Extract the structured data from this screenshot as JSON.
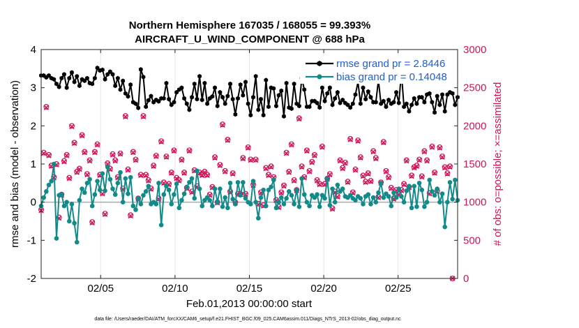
{
  "chart_data": {
    "type": "line",
    "title_line1": "Northern Hemisphere 167035 / 168055 = 99.393%",
    "title_line2": "AIRCRAFT_U_WIND_COMPONENT @ 688 hPa",
    "xlabel": "Feb.01,2013 00:00:00 start",
    "ylabel_left": "rmse and bias (model - observation)",
    "ylabel_right": "# of obs: o=possible; ×=assimilated",
    "footnote": "data file: /Users/raeder/DAI/ATM_forcXX/CAM6_setup/f.e21.FHIST_BGC.f09_025.CAM6assim.011/Diags_NTrS_2013-02/obs_diag_output.nc",
    "x_tick_labels": [
      "02/05",
      "02/10",
      "02/15",
      "02/20",
      "02/25"
    ],
    "x_tick_days": [
      5,
      10,
      15,
      20,
      25
    ],
    "xlim_days": [
      1,
      29
    ],
    "ylim_left": [
      -2,
      4
    ],
    "y_left_ticks": [
      "-2",
      "-1",
      "0",
      "1",
      "2",
      "3",
      "4"
    ],
    "ylim_right": [
      0,
      3000
    ],
    "y_right_ticks": [
      "0",
      "500",
      "1000",
      "1500",
      "2000",
      "2500",
      "3000"
    ],
    "colors": {
      "rmse": "#000000",
      "bias": "#138a8a",
      "obs": "#d0145a",
      "zero_line": "#b0b0b0",
      "legend_text": "#1f5fcf"
    },
    "legend": [
      {
        "name": "rmse",
        "label": "rmse grand pr = 2.8446"
      },
      {
        "name": "bias",
        "label": "bias grand pr = 0.14048"
      }
    ],
    "series": [
      {
        "name": "rmse",
        "values": [
          3.32,
          3.32,
          3.27,
          3.32,
          3.25,
          3.22,
          3.1,
          3.02,
          3.25,
          3.35,
          3.0,
          3.25,
          3.4,
          3.15,
          3.3,
          3.05,
          3.22,
          3.18,
          3.25,
          3.12,
          3.1,
          3.25,
          3.52,
          3.45,
          3.47,
          3.22,
          3.35,
          3.42,
          3.35,
          3.05,
          3.25,
          2.95,
          3.18,
          2.85,
          2.77,
          3.08,
          2.62,
          2.58,
          2.47,
          3.48,
          3.28,
          2.5,
          2.67,
          2.78,
          2.62,
          2.68,
          2.64,
          2.72,
          2.72,
          3.12,
          2.7,
          2.55,
          2.62,
          2.88,
          2.95,
          3.0,
          2.72,
          2.58,
          2.42,
          2.75,
          3.1,
          2.7,
          3.3,
          2.68,
          3.12,
          2.58,
          2.72,
          2.77,
          3.0,
          2.52,
          2.88,
          2.75,
          2.58,
          2.78,
          3.1,
          2.7,
          2.3,
          2.72,
          3.08,
          2.8,
          3.15,
          2.58,
          2.28,
          2.75,
          3.3,
          2.42,
          2.7,
          2.28,
          3.2,
          2.5,
          3.0,
          2.98,
          2.52,
          2.8,
          2.92,
          2.25,
          3.12,
          2.48,
          2.45,
          3.1,
          2.58,
          2.52,
          3.25,
          2.95,
          2.5,
          2.5,
          2.65,
          2.65,
          2.6,
          2.48,
          3.0,
          2.65,
          2.85,
          3.0,
          2.55,
          2.72,
          2.88,
          2.6,
          2.68,
          2.6,
          2.55,
          2.48,
          2.58,
          2.82,
          3.15,
          2.58,
          3.0,
          2.7,
          2.9,
          2.75,
          2.62,
          2.62,
          3.2,
          2.58,
          2.65,
          2.5,
          2.68,
          2.58,
          2.62,
          2.88,
          2.6,
          3.4,
          2.5,
          2.58,
          2.38,
          2.55,
          2.72,
          2.58,
          2.75,
          2.75,
          2.62,
          2.82,
          2.85,
          2.62,
          2.35,
          2.78,
          2.55,
          2.82,
          2.38,
          2.82,
          2.88,
          2.85,
          2.55,
          2.75
        ]
      },
      {
        "name": "bias",
        "values": [
          -0.1,
          0.12,
          0.28,
          0.45,
          0.55,
          1.0,
          -0.95,
          0.18,
          0.2,
          -0.1,
          0.0,
          -0.5,
          -0.05,
          -0.55,
          -1.05,
          0.05,
          0.35,
          0.25,
          0.5,
          0.6,
          -0.1,
          0.2,
          0.55,
          0.32,
          0.75,
          0.3,
          0.92,
          0.6,
          0.35,
          0.2,
          0.5,
          0.78,
          0.0,
          0.62,
          0.22,
          0.65,
          -0.1,
          -0.2,
          0.1,
          -0.05,
          0.18,
          0.28,
          0.42,
          -0.05,
          0.0,
          -0.05,
          0.5,
          -0.6,
          0.2,
          0.42,
          0.32,
          -0.05,
          0.2,
          0.48,
          -0.15,
          0.05,
          0.22,
          0.4,
          0.52,
          0.62,
          0.1,
          0.82,
          0.35,
          -0.1,
          0.05,
          0.12,
          0.05,
          -0.1,
          0.35,
          0.0,
          0.35,
          -0.12,
          0.12,
          -0.15,
          0.5,
          0.08,
          -0.05,
          0.52,
          0.18,
          0.52,
          0.1,
          0.0,
          -0.05,
          0.55,
          0.0,
          -0.42,
          0.12,
          0.32,
          -0.1,
          0.32,
          0.4,
          0.58,
          -0.15,
          0.0,
          0.12,
          -0.05,
          0.1,
          0.28,
          0.18,
          -0.05,
          0.32,
          -0.12,
          0.62,
          0.2,
          0.0,
          -0.1,
          0.18,
          0.12,
          0.2,
          -0.12,
          0.18,
          0.1,
          0.62,
          -0.08,
          0.35,
          0.0,
          0.45,
          0.28,
          0.35,
          0.15,
          0.12,
          0.18,
          0.1,
          0.05,
          0.15,
          0.1,
          -0.05,
          0.15,
          0.2,
          -0.05,
          0.12,
          0.0,
          0.25,
          0.5,
          0.12,
          0.22,
          0.15,
          -0.1,
          0.25,
          0.12,
          0.35,
          0.15,
          0.0,
          0.3,
          0.42,
          -0.15,
          0.42,
          -0.12,
          0.5,
          0.32,
          -0.12,
          0.0,
          0.58,
          0.28,
          0.18,
          0.35,
          0.0,
          0.22,
          -0.65,
          0.0,
          0.52,
          0.08,
          0.58,
          0.05
        ]
      },
      {
        "name": "obs_possible",
        "values": [
          900,
          1650,
          2250,
          1620,
          1480,
          1330,
          1500,
          800,
          1100,
          1540,
          1620,
          1320,
          2000,
          1780,
          1400,
          1440,
          1880,
          1660,
          1370,
          1550,
          740,
          1660,
          1760,
          1360,
          1120,
          850,
          1510,
          1440,
          1630,
          1550,
          1330,
          1640,
          1180,
          2130,
          1430,
          830,
          1660,
          1560,
          1050,
          1360,
          2130,
          1360,
          1290,
          1180,
          1480,
          1610,
          1050,
          1800,
          1260,
          1600,
          1240,
          1390,
          1680,
          1320,
          1290,
          1560,
          1390,
          1190,
          1680,
          1140,
          1420,
          1210,
          1390,
          1360,
          1400,
          1360,
          1100,
          1200,
          1590,
          1000,
          1490,
          2020,
          1410,
          1820,
          1140,
          1380,
          1000,
          1110,
          1110,
          1580,
          1110,
          1720,
          1560,
          1230,
          1560,
          980,
          1130,
          960,
          1450,
          1360,
          1470,
          1330,
          1030,
          940,
          1130,
          1220,
          1650,
          1400,
          1760,
          1290,
          1160,
          2100,
          1470,
          1330,
          1680,
          1410,
          1530,
          1620,
          1290,
          1240,
          1730,
          1240,
          1310,
          1370,
          920,
          1140,
          1080,
          1550,
          1450,
          1520,
          1270,
          1830,
          1130,
          1430,
          1810,
          1590,
          1350,
          1270,
          1380,
          1280,
          1670,
          1580,
          1070,
          1260,
          1790,
          1410,
          1330,
          1190,
          1050,
          1160,
          1110,
          1160,
          1240,
          1550,
          1200,
          1350,
          1460,
          1480,
          1560,
          1340,
          1670,
          1550,
          1120,
          1730,
          1390,
          1150,
          1720,
          1600,
          1460,
          1380,
          1470,
          0
        ]
      },
      {
        "name": "obs_assimilated",
        "values": [
          890,
          1640,
          2240,
          1610,
          1470,
          1320,
          1490,
          790,
          1090,
          1530,
          1610,
          1310,
          1990,
          1770,
          1390,
          1430,
          1870,
          1650,
          1360,
          1540,
          730,
          1650,
          1750,
          1350,
          1110,
          840,
          1500,
          1430,
          1620,
          1540,
          1320,
          1630,
          1170,
          2120,
          1420,
          820,
          1650,
          1550,
          1040,
          1350,
          2120,
          1350,
          1280,
          1170,
          1470,
          1600,
          1040,
          1790,
          1250,
          1590,
          1230,
          1380,
          1670,
          1310,
          1280,
          1550,
          1380,
          1180,
          1670,
          1130,
          1410,
          1200,
          1380,
          1350,
          1390,
          1350,
          1090,
          1190,
          1580,
          990,
          1480,
          2010,
          1400,
          1810,
          1130,
          1370,
          990,
          1100,
          1100,
          1570,
          1100,
          1710,
          1550,
          1220,
          1550,
          970,
          1120,
          950,
          1440,
          1350,
          1460,
          1320,
          1020,
          930,
          1120,
          1210,
          1640,
          1390,
          1750,
          1280,
          1150,
          2090,
          1460,
          1320,
          1670,
          1400,
          1520,
          1610,
          1280,
          1230,
          1720,
          1230,
          1300,
          1360,
          910,
          1130,
          1070,
          1540,
          1440,
          1510,
          1260,
          1820,
          1120,
          1420,
          1800,
          1580,
          1340,
          1260,
          1370,
          1270,
          1660,
          1570,
          1060,
          1250,
          1780,
          1400,
          1320,
          1180,
          1040,
          1150,
          1100,
          1150,
          1230,
          1540,
          1190,
          1340,
          1450,
          1470,
          1550,
          1330,
          1660,
          1540,
          1110,
          1720,
          1380,
          1140,
          1710,
          1590,
          1450,
          1370,
          1460,
          0
        ]
      }
    ]
  }
}
